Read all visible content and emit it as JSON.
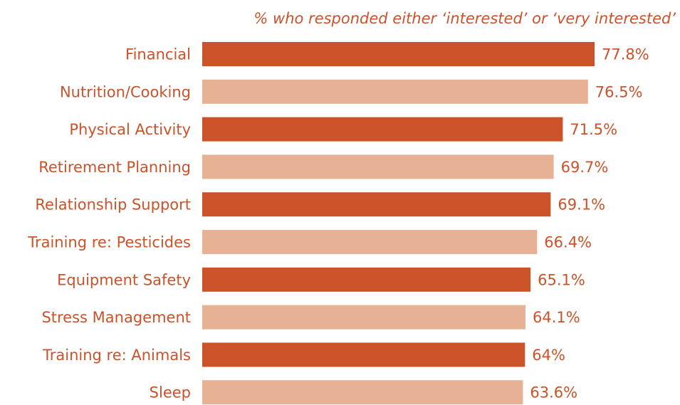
{
  "chart_data": {
    "type": "bar",
    "orientation": "horizontal",
    "subtitle": "% who responded either ‘interested’ or ‘very interested’",
    "categories": [
      "Financial",
      "Nutrition/Cooking",
      "Physical Activity",
      "Retirement Planning",
      "Relationship Support",
      "Training re: Pesticides",
      "Equipment Safety",
      "Stress Management",
      "Training re: Animals",
      "Sleep"
    ],
    "values": [
      77.8,
      76.5,
      71.5,
      69.7,
      69.1,
      66.4,
      65.1,
      64.1,
      64,
      63.6
    ],
    "value_labels": [
      "77.8%",
      "76.5%",
      "71.5%",
      "69.7%",
      "69.1%",
      "66.4%",
      "65.1%",
      "64.1%",
      "64%",
      "63.6%"
    ],
    "xlim": [
      0,
      100
    ],
    "grid": false,
    "legend": "none",
    "colors": {
      "dark_bar": "#cc5229",
      "light_bar": "#e6b194",
      "text": "#cc5229"
    }
  }
}
